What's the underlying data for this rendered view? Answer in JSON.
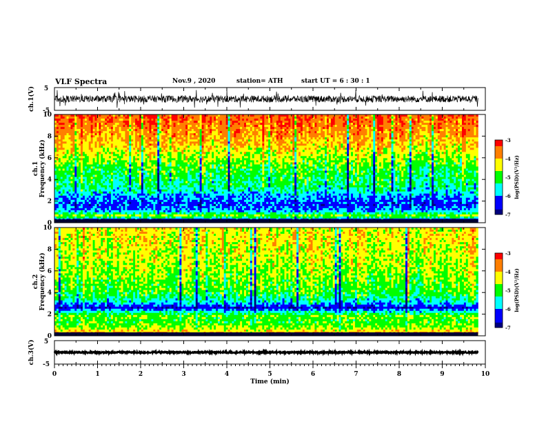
{
  "header": {
    "title": "VLF Spectra",
    "date": "Nov.9 , 2020",
    "station": "station= ATH",
    "start": "start UT = 6 : 30 : 1"
  },
  "chart_data": [
    {
      "type": "line",
      "panel": "ch1-waveform",
      "ylabel": "ch.1(V)",
      "ylim": [
        -5,
        5
      ],
      "xlim": [
        0,
        9.83
      ],
      "y_ticks": [
        "5",
        "-5"
      ],
      "description_values": {
        "baseline": 0,
        "typical_amplitude": 1.5,
        "max_spike": 4
      }
    },
    {
      "type": "heatmap",
      "panel": "ch1-spectrogram",
      "ylabel": "ch.1\nFrequency (kHz)",
      "ylabel_line1": "ch.1",
      "ylabel_line2": "Frequency (kHz)",
      "ylim": [
        0,
        10
      ],
      "xlim": [
        0,
        9.83
      ],
      "y_ticks": [
        0,
        2,
        4,
        6,
        8,
        10
      ],
      "colorbar": {
        "label": "log(PSD)(V²/Hz)",
        "range": [
          -7,
          -3
        ],
        "ticks": [
          "-3",
          "-4",
          "-5",
          "-6",
          "-7"
        ]
      },
      "band_profile_khz_vs_logpsd": [
        {
          "f": 0.2,
          "v": -6.9
        },
        {
          "f": 0.6,
          "v": -4.5
        },
        {
          "f": 1.0,
          "v": -5.7
        },
        {
          "f": 1.6,
          "v": -6.3
        },
        {
          "f": 2.3,
          "v": -6.0
        },
        {
          "f": 3.0,
          "v": -5.5
        },
        {
          "f": 4.0,
          "v": -5.2
        },
        {
          "f": 5.0,
          "v": -5.0
        },
        {
          "f": 6.0,
          "v": -4.6
        },
        {
          "f": 7.0,
          "v": -4.2
        },
        {
          "f": 8.0,
          "v": -3.9
        },
        {
          "f": 9.0,
          "v": -3.6
        },
        {
          "f": 10.0,
          "v": -3.4
        }
      ]
    },
    {
      "type": "heatmap",
      "panel": "ch2-spectrogram",
      "ylabel": "ch.2\nFrequency (kHz)",
      "ylabel_line1": "ch.2",
      "ylabel_line2": "Frequency (kHz)",
      "ylim": [
        0,
        10
      ],
      "xlim": [
        0,
        9.83
      ],
      "y_ticks": [
        0,
        2,
        4,
        6,
        8,
        10
      ],
      "colorbar": {
        "label": "log(PSD)(V²/Hz)",
        "range": [
          -7,
          -3
        ],
        "ticks": [
          "-3",
          "-4",
          "-5",
          "-6",
          "-7"
        ]
      },
      "band_profile_khz_vs_logpsd": [
        {
          "f": 0.2,
          "v": -3.8
        },
        {
          "f": 0.7,
          "v": -4.6
        },
        {
          "f": 1.3,
          "v": -5.0
        },
        {
          "f": 1.9,
          "v": -4.8
        },
        {
          "f": 2.6,
          "v": -6.5
        },
        {
          "f": 3.2,
          "v": -5.5
        },
        {
          "f": 4.0,
          "v": -5.0
        },
        {
          "f": 5.0,
          "v": -4.8
        },
        {
          "f": 6.0,
          "v": -4.6
        },
        {
          "f": 7.0,
          "v": -4.5
        },
        {
          "f": 8.0,
          "v": -4.4
        },
        {
          "f": 9.0,
          "v": -4.3
        },
        {
          "f": 10.0,
          "v": -4.3
        }
      ]
    },
    {
      "type": "line",
      "panel": "ch3-waveform",
      "ylabel": "ch.3(V)",
      "ylim": [
        -5,
        5
      ],
      "xlim": [
        0,
        9.83
      ],
      "y_ticks": [
        "5",
        "-5"
      ],
      "description_values": {
        "baseline": 0,
        "typical_amplitude": 0.3
      }
    }
  ],
  "x_axis": {
    "label": "Time (min)",
    "range": [
      0,
      10
    ],
    "ticks": [
      "0",
      "1",
      "2",
      "3",
      "4",
      "5",
      "6",
      "7",
      "8",
      "9",
      "10"
    ],
    "data_end_min": 9.83
  },
  "colors": {
    "frame": "#000000",
    "background": "#ffffff",
    "colormap": [
      "#00007f",
      "#0000ff",
      "#00ffff",
      "#00ff00",
      "#ffff00",
      "#ff7f00",
      "#ff0000"
    ]
  }
}
